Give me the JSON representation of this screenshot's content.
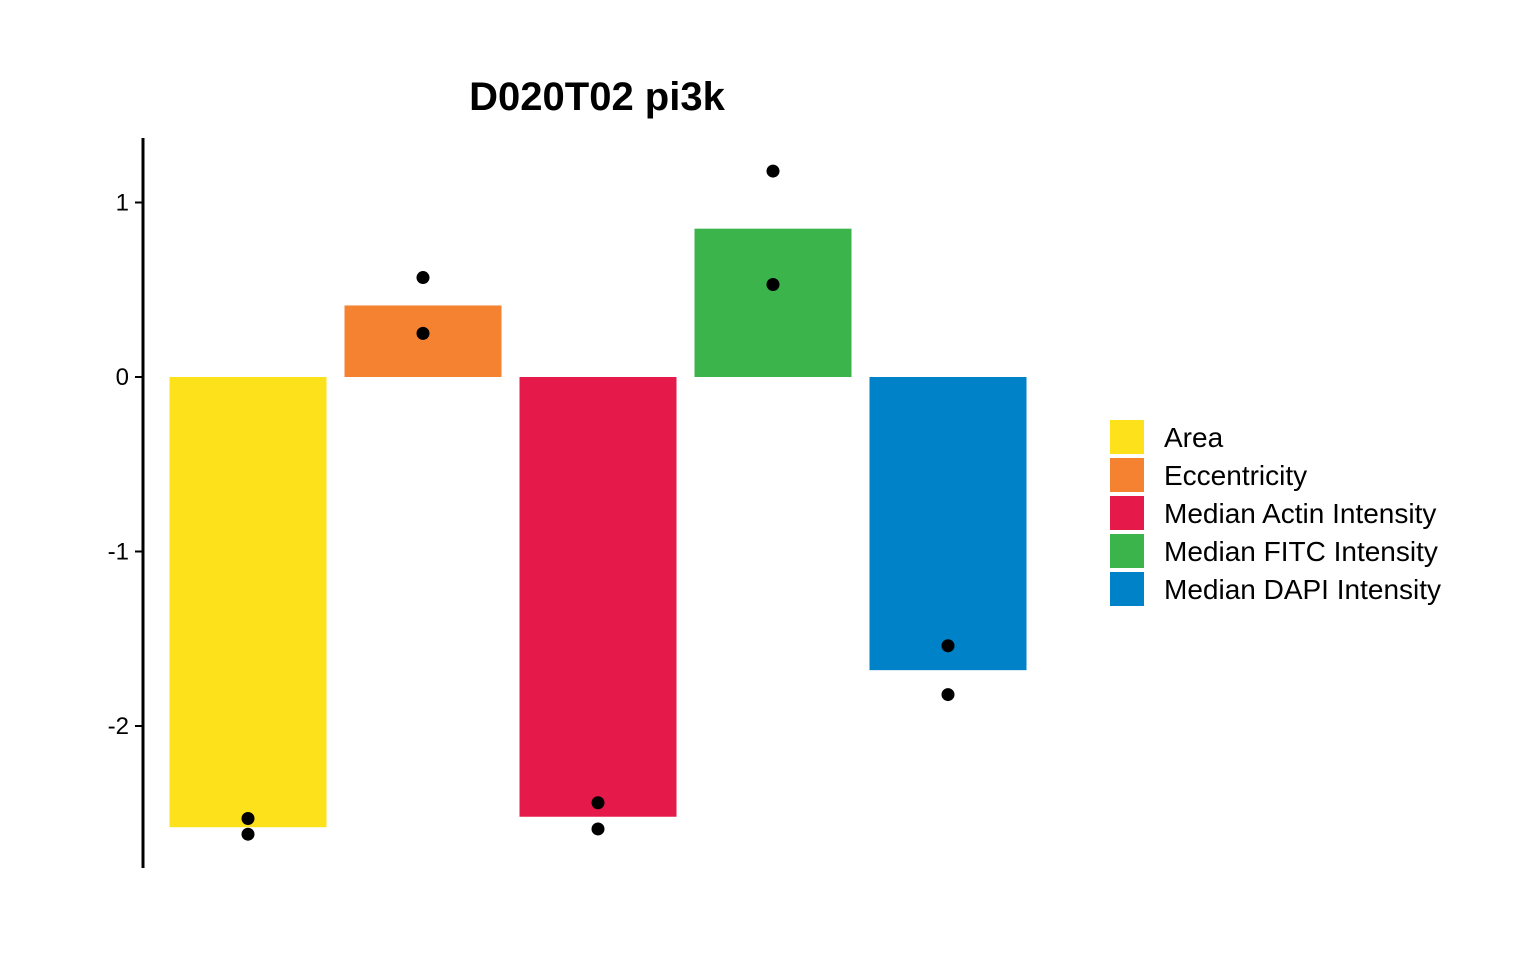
{
  "chart_data": {
    "type": "bar",
    "title": "D020T02 pi3k",
    "xlabel": "",
    "ylabel": "",
    "ylim": [
      -2.8,
      1.37
    ],
    "yticks": [
      1,
      0,
      -1,
      -2
    ],
    "ytick_labels": [
      "1",
      "0",
      "-1",
      "-2"
    ],
    "categories": [
      "Area",
      "Eccentricity",
      "Median Actin Intensity",
      "Median FITC Intensity",
      "Median DAPI Intensity"
    ],
    "values": [
      -2.58,
      0.41,
      -2.52,
      0.85,
      -1.68
    ],
    "colors": [
      "#FDE11A",
      "#F58231",
      "#E51A4B",
      "#3BB44B",
      "#0082C8"
    ],
    "points": [
      [
        -2.53,
        -2.62
      ],
      [
        0.57,
        0.25
      ],
      [
        -2.44,
        -2.59
      ],
      [
        1.18,
        0.53
      ],
      [
        -1.54,
        -1.82
      ]
    ],
    "grid": false,
    "legend": {
      "position": "right",
      "entries": [
        "Area",
        "Eccentricity",
        "Median Actin Intensity",
        "Median FITC Intensity",
        "Median DAPI Intensity"
      ]
    }
  }
}
